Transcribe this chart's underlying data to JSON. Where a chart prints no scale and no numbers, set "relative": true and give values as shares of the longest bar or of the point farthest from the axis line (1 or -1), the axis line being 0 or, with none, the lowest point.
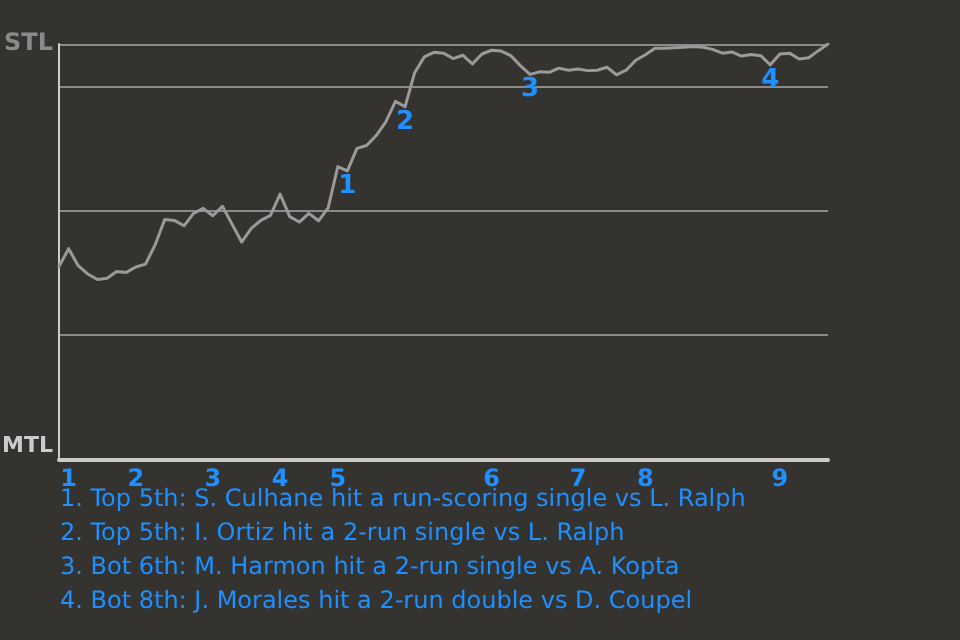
{
  "chart_data": {
    "type": "line",
    "relative": true,
    "categories": [
      null,
      "1",
      null,
      null,
      null,
      null,
      null,
      null,
      "2",
      null,
      null,
      null,
      null,
      null,
      null,
      null,
      "3",
      null,
      null,
      null,
      null,
      null,
      null,
      "4",
      null,
      null,
      null,
      null,
      null,
      "5",
      null,
      null,
      null,
      null,
      null,
      null,
      null,
      null,
      null,
      null,
      null,
      null,
      null,
      null,
      null,
      "6",
      null,
      null,
      null,
      null,
      null,
      null,
      null,
      null,
      "7",
      null,
      null,
      null,
      null,
      null,
      null,
      "8",
      null,
      null,
      null,
      null,
      null,
      null,
      null,
      null,
      null,
      null,
      null,
      null,
      null,
      "9",
      null,
      null,
      null,
      null,
      null
    ],
    "series": [
      {
        "color": "#9a9a9a",
        "values": [
          0.465,
          0.508,
          0.467,
          0.447,
          0.434,
          0.437,
          0.453,
          0.451,
          0.464,
          0.471,
          0.517,
          0.578,
          0.576,
          0.563,
          0.593,
          0.605,
          0.587,
          0.61,
          0.567,
          0.524,
          0.557,
          0.576,
          0.588,
          0.639,
          0.585,
          0.572,
          0.593,
          0.575,
          0.606,
          0.705,
          0.695,
          0.749,
          0.756,
          0.78,
          0.813,
          0.862,
          0.849,
          0.931,
          0.969,
          0.98,
          0.978,
          0.965,
          0.973,
          0.952,
          0.976,
          0.985,
          0.983,
          0.972,
          0.948,
          0.927,
          0.933,
          0.932,
          0.942,
          0.937,
          0.94,
          0.936,
          0.937,
          0.944,
          0.926,
          0.937,
          0.961,
          0.974,
          0.99,
          0.99,
          0.991,
          0.992,
          0.994,
          0.992,
          0.987,
          0.978,
          0.981,
          0.971,
          0.975,
          0.972,
          0.95,
          0.976,
          0.978,
          0.964,
          0.967,
          0.984,
          1
        ]
      }
    ],
    "grid": "y",
    "marker": "none",
    "annotations": [
      "STL",
      "MTL",
      {
        "text": "1",
        "y": 0.695
      },
      {
        "text": "2",
        "y": 0.849
      },
      {
        "text": "3",
        "y": 0.927
      },
      {
        "text": "4",
        "y": 0.95
      },
      "1. Top 5th: S. Culhane hit a run-scoring single vs L. Ralph",
      "2. Top 5th: I. Ortiz hit a 2-run single vs L. Ralph",
      "3. Bot 6th: M. Harmon hit a 2-run single vs A. Kopta",
      "4. Bot 8th: J. Morales hit a 2-run double vs D. Coupel"
    ]
  }
}
